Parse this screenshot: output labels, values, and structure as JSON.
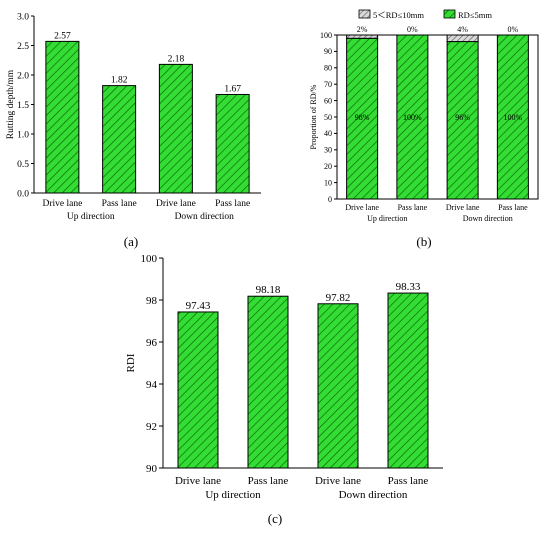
{
  "colors": {
    "bar_fill": "#33dd33",
    "hatch": "#0b6a0b",
    "minor_fill": "#d9d9d9",
    "minor_hatch": "#555555"
  },
  "panel_labels": [
    "(a)",
    "(b)",
    "(c)"
  ],
  "chart_data": [
    {
      "type": "bar",
      "panel": "(a)",
      "categories": [
        "Drive lane",
        "Pass lane",
        "Drive lane",
        "Pass lane"
      ],
      "groups": [
        "Up direction",
        "Down direction"
      ],
      "values": [
        2.57,
        1.82,
        2.18,
        1.67
      ],
      "data_labels": [
        "2.57",
        "1.82",
        "2.18",
        "1.67"
      ],
      "ylabel": "Rutting depth/mm",
      "ylim": [
        0,
        3.0
      ],
      "yticks": [
        "0.0",
        "0.5",
        "1.0",
        "1.5",
        "2.0",
        "2.5",
        "3.0"
      ],
      "grid": false
    },
    {
      "type": "bar",
      "stacked": true,
      "panel": "(b)",
      "categories": [
        "Drive lane",
        "Pass lane",
        "Drive lane",
        "Pass lane"
      ],
      "groups": [
        "Up direction",
        "Down direction"
      ],
      "ylabel": "Proportion of RD/%",
      "ylim": [
        0,
        100
      ],
      "yticks": [
        "0",
        "10",
        "20",
        "30",
        "40",
        "50",
        "60",
        "70",
        "80",
        "90",
        "100"
      ],
      "legend_position": "top",
      "series": [
        {
          "name": "RD≤5mm",
          "values": [
            98,
            100,
            96,
            100
          ],
          "labels": [
            "98%",
            "100%",
            "96%",
            "100%"
          ]
        },
        {
          "name": "5＜RD≤10mm",
          "values": [
            2,
            0,
            4,
            0
          ],
          "labels": [
            "2%",
            "0%",
            "4%",
            "0%"
          ]
        }
      ],
      "grid": false
    },
    {
      "type": "bar",
      "panel": "(c)",
      "categories": [
        "Drive lane",
        "Pass lane",
        "Drive lane",
        "Pass lane"
      ],
      "groups": [
        "Up direction",
        "Down direction"
      ],
      "values": [
        97.43,
        98.18,
        97.82,
        98.33
      ],
      "data_labels": [
        "97.43",
        "98.18",
        "97.82",
        "98.33"
      ],
      "ylabel": "RDI",
      "ylim": [
        90,
        100
      ],
      "yticks": [
        "90",
        "92",
        "94",
        "96",
        "98",
        "100"
      ],
      "grid": false
    }
  ]
}
